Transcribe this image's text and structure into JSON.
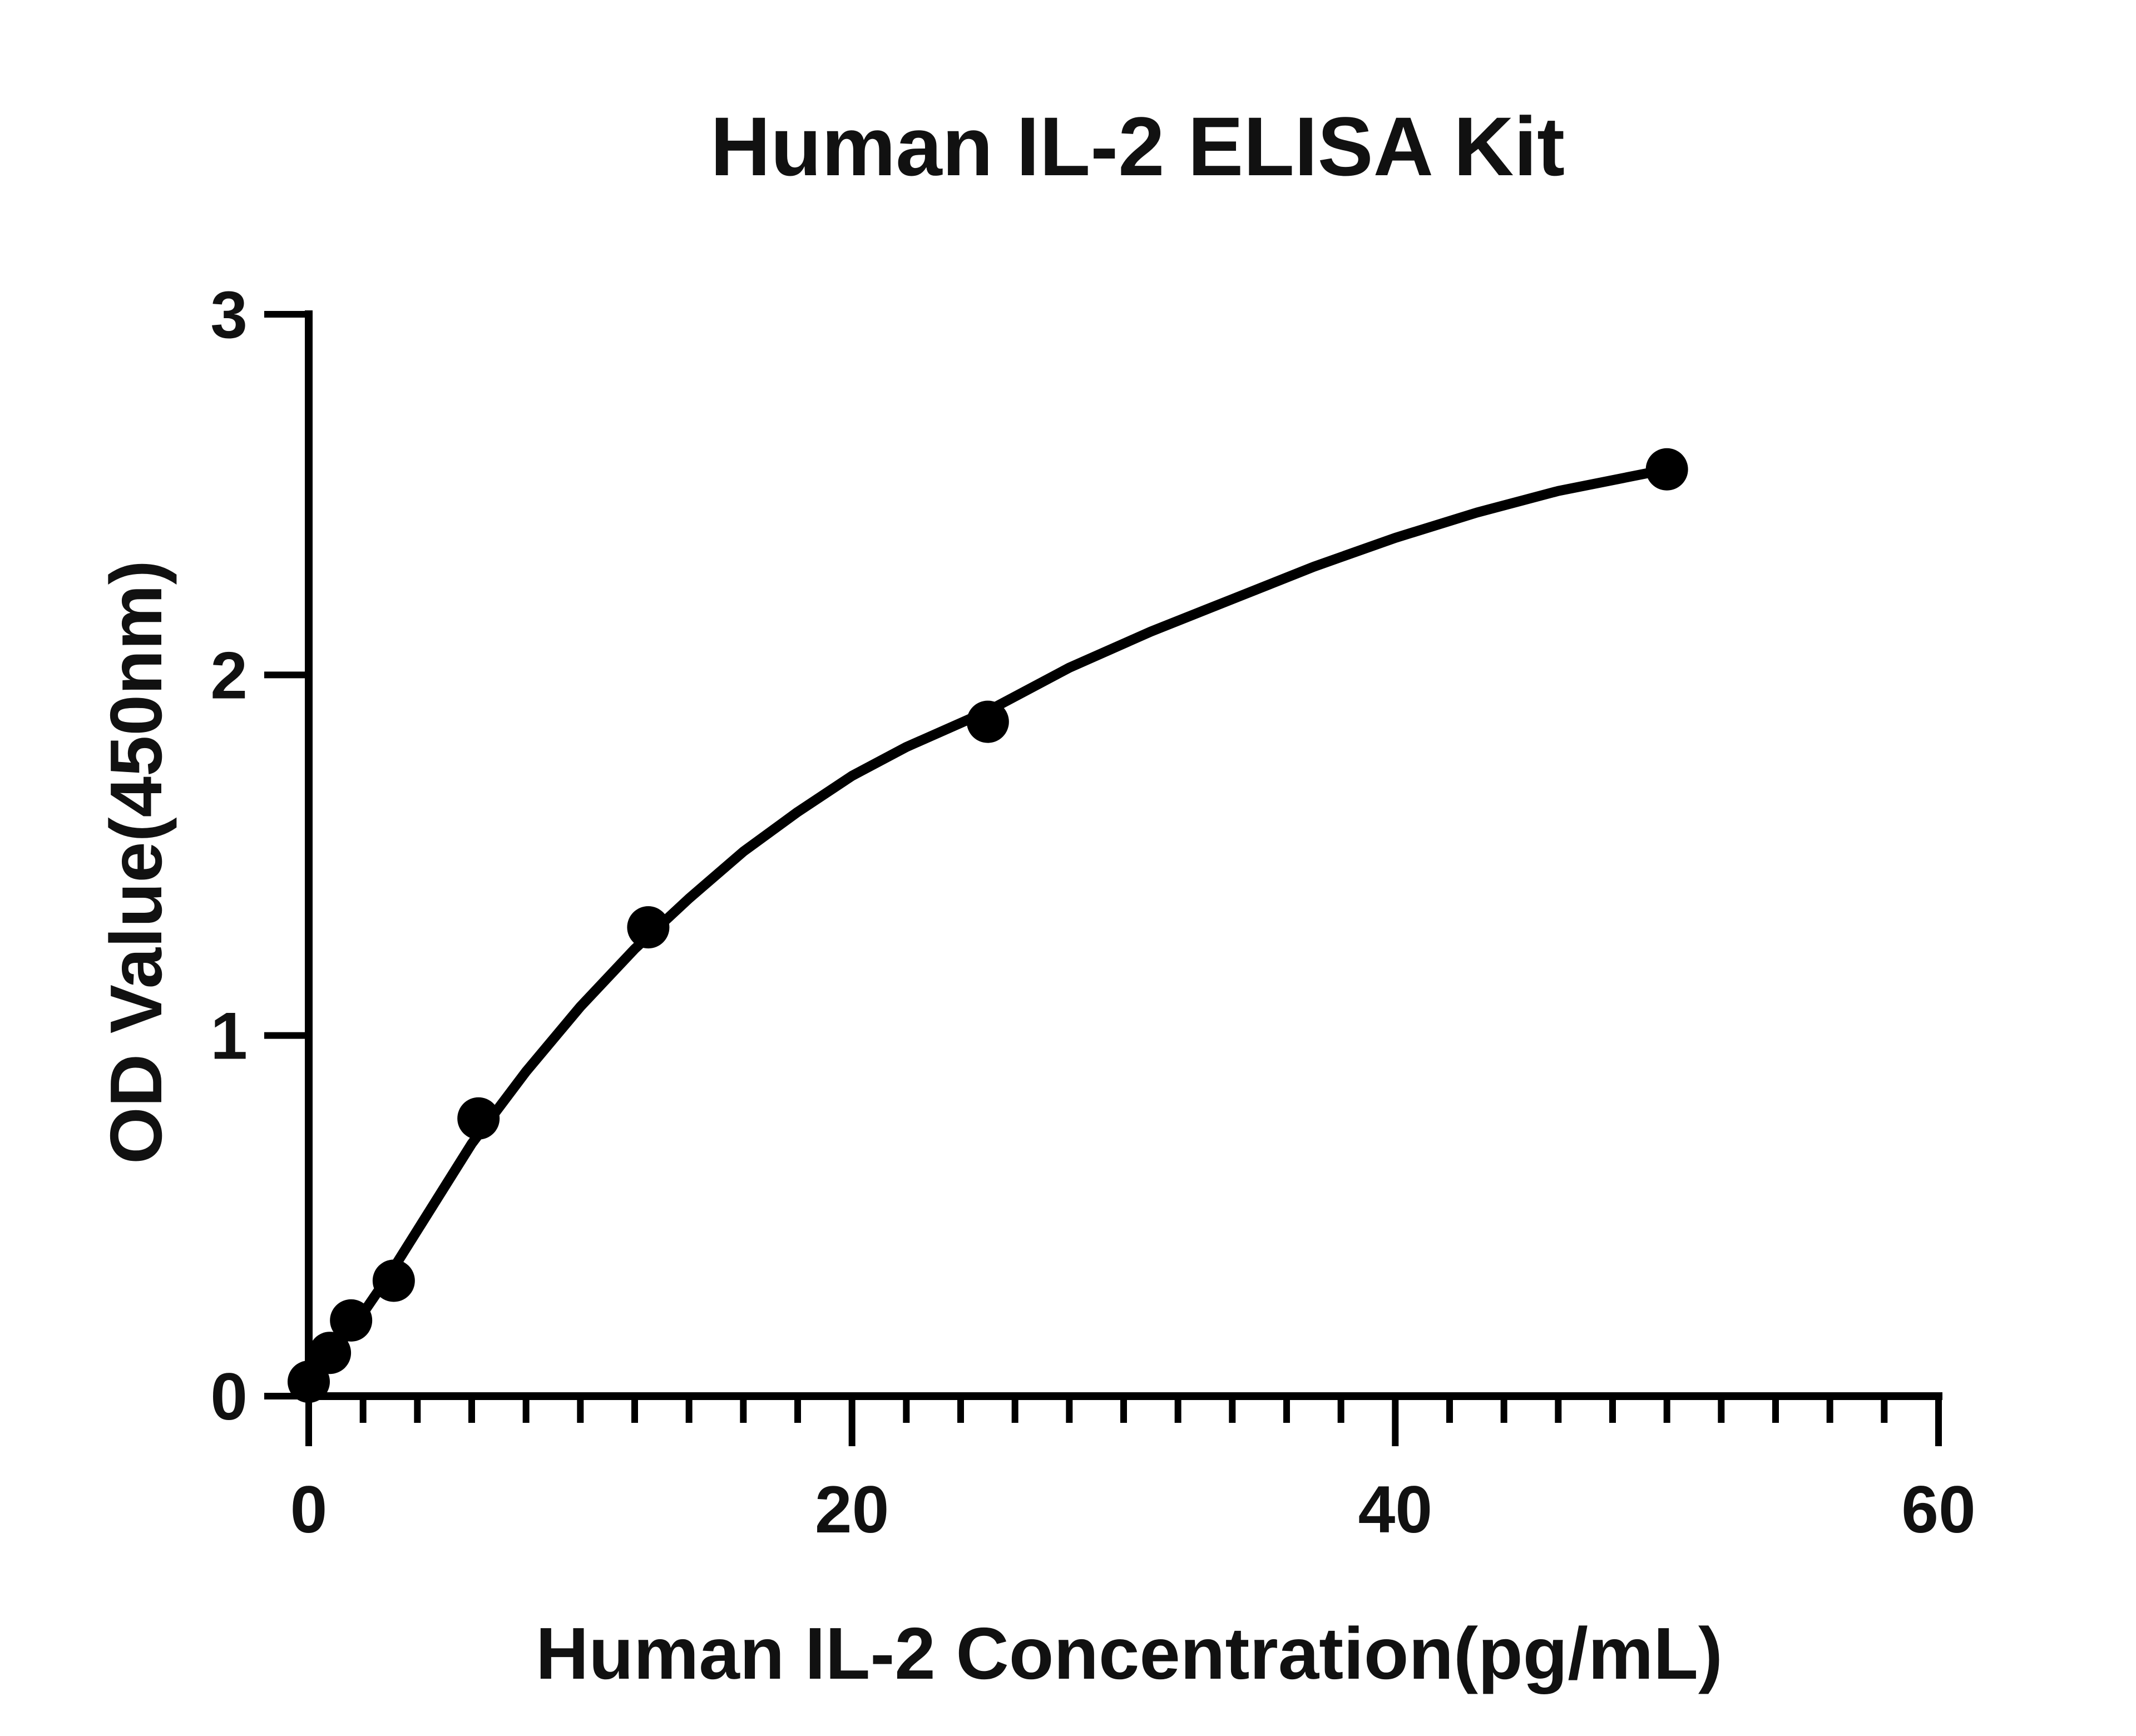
{
  "chart_data": {
    "type": "scatter",
    "title": "Human IL-2 ELISA Kit",
    "xlabel": "Human IL-2 Concentration(pg/mL)",
    "ylabel": "OD Value(450nm)",
    "xlim": [
      0,
      60
    ],
    "ylim": [
      0,
      3
    ],
    "x_ticks": [
      0,
      20,
      40,
      60
    ],
    "y_ticks": [
      0,
      1,
      2,
      3
    ],
    "x_minor_step": 2,
    "grid": false,
    "legend": "none",
    "series": [
      {
        "x": [
          0,
          0.78,
          1.56,
          3.13,
          6.25,
          12.5,
          25,
          50
        ],
        "y": [
          0.04,
          0.12,
          0.21,
          0.32,
          0.77,
          1.3,
          1.87,
          2.57
        ]
      }
    ],
    "fit_curve": {
      "x": [
        0,
        1,
        2,
        3,
        4,
        5,
        6,
        8,
        10,
        12,
        14,
        16,
        18,
        20,
        22,
        25,
        28,
        31,
        34,
        37,
        40,
        43,
        46,
        50
      ],
      "y": [
        0.04,
        0.13,
        0.23,
        0.34,
        0.46,
        0.58,
        0.7,
        0.9,
        1.08,
        1.24,
        1.38,
        1.51,
        1.62,
        1.72,
        1.8,
        1.9,
        2.02,
        2.12,
        2.21,
        2.3,
        2.38,
        2.45,
        2.51,
        2.57
      ]
    },
    "colors": {
      "ink": "#000000",
      "background": "#ffffff"
    }
  }
}
